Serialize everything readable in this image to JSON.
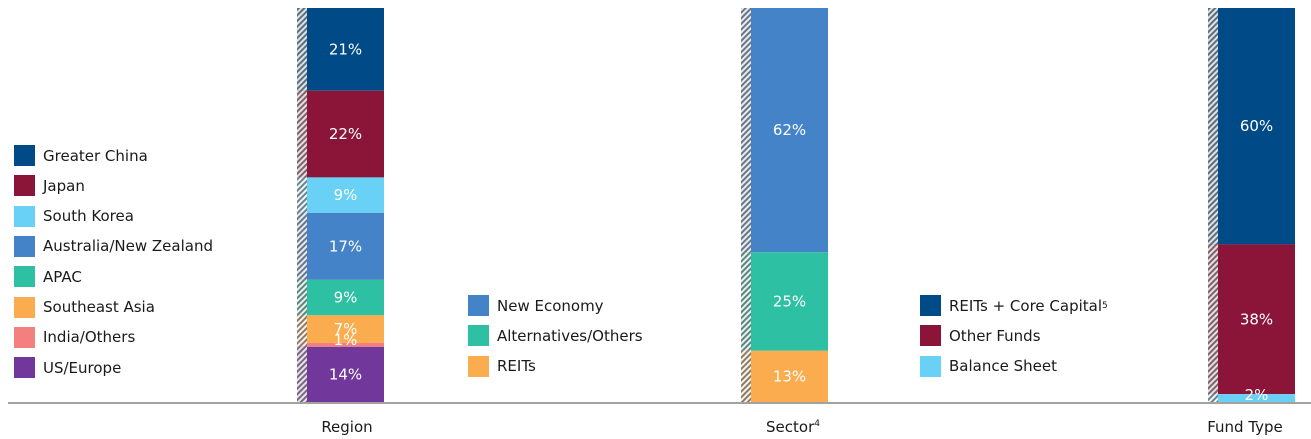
{
  "chart_data": [
    {
      "type": "bar",
      "stacked": true,
      "xlabel": "Region",
      "xlabel_note": "",
      "unit": "%",
      "ylim": [
        0,
        100
      ],
      "segments": [
        {
          "name": "Greater China",
          "value": 21,
          "label": "21%",
          "color": "#004b87"
        },
        {
          "name": "Japan",
          "value": 22,
          "label": "22%",
          "color": "#8a1538"
        },
        {
          "name": "South Korea",
          "value": 9,
          "label": "9%",
          "color": "#69d1f5"
        },
        {
          "name": "Australia/New Zealand",
          "value": 17,
          "label": "17%",
          "color": "#4583c8"
        },
        {
          "name": "APAC",
          "value": 9,
          "label": "9%",
          "color": "#2ec0a2"
        },
        {
          "name": "Southeast Asia",
          "value": 7,
          "label": "7%",
          "color": "#fbac4e"
        },
        {
          "name": "India/Others",
          "value": 1,
          "label": "1%",
          "color": "#f47f7f"
        },
        {
          "name": "US/Europe",
          "value": 14,
          "label": "14%",
          "color": "#71379b"
        }
      ]
    },
    {
      "type": "bar",
      "stacked": true,
      "xlabel": "Sector",
      "xlabel_note": "4",
      "unit": "%",
      "ylim": [
        0,
        100
      ],
      "segments": [
        {
          "name": "New Economy",
          "value": 62,
          "label": "62%",
          "color": "#4583c8"
        },
        {
          "name": "Alternatives/Others",
          "value": 25,
          "label": "25%",
          "color": "#2ec0a2"
        },
        {
          "name": "REITs",
          "value": 13,
          "label": "13%",
          "color": "#fbac4e"
        }
      ]
    },
    {
      "type": "bar",
      "stacked": true,
      "xlabel": "Fund Type",
      "xlabel_note": "",
      "unit": "%",
      "ylim": [
        0,
        100
      ],
      "segments": [
        {
          "name": "REITs + Core Capital",
          "name_note": "5",
          "value": 60,
          "label": "60%",
          "color": "#004b87"
        },
        {
          "name": "Other Funds",
          "value": 38,
          "label": "38%",
          "color": "#8a1538"
        },
        {
          "name": "Balance Sheet",
          "value": 2,
          "label": "2%",
          "color": "#69d1f5"
        }
      ]
    }
  ],
  "colors": {
    "axis": "#444444",
    "label_text": "#ffffff",
    "text": "#1a1a1a"
  }
}
